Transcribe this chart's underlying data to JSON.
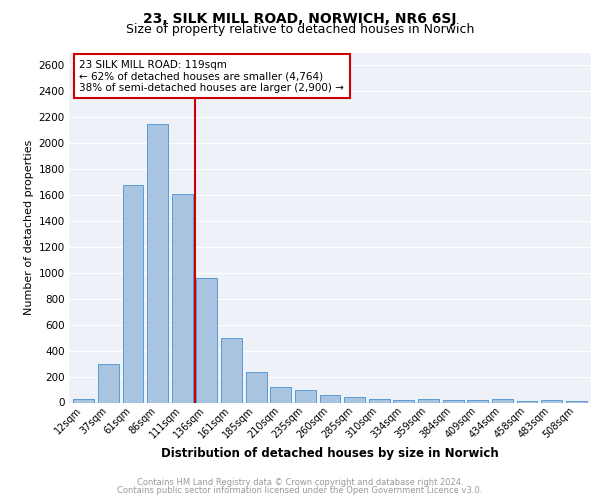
{
  "title1": "23, SILK MILL ROAD, NORWICH, NR6 6SJ",
  "title2": "Size of property relative to detached houses in Norwich",
  "xlabel": "Distribution of detached houses by size in Norwich",
  "ylabel": "Number of detached properties",
  "categories": [
    "12sqm",
    "37sqm",
    "61sqm",
    "86sqm",
    "111sqm",
    "136sqm",
    "161sqm",
    "185sqm",
    "210sqm",
    "235sqm",
    "260sqm",
    "285sqm",
    "310sqm",
    "334sqm",
    "359sqm",
    "384sqm",
    "409sqm",
    "434sqm",
    "458sqm",
    "483sqm",
    "508sqm"
  ],
  "values": [
    30,
    300,
    1680,
    2150,
    1610,
    960,
    500,
    235,
    120,
    100,
    55,
    40,
    25,
    20,
    25,
    20,
    20,
    25,
    10,
    20,
    15
  ],
  "bar_color": "#a8c4e0",
  "bar_edge_color": "#5b9bd5",
  "annotation_text_line1": "23 SILK MILL ROAD: 119sqm",
  "annotation_text_line2": "← 62% of detached houses are smaller (4,764)",
  "annotation_text_line3": "38% of semi-detached houses are larger (2,900) →",
  "vline_color": "#cc0000",
  "ylim": [
    0,
    2700
  ],
  "yticks": [
    0,
    200,
    400,
    600,
    800,
    1000,
    1200,
    1400,
    1600,
    1800,
    2000,
    2200,
    2400,
    2600
  ],
  "footnote1": "Contains HM Land Registry data © Crown copyright and database right 2024.",
  "footnote2": "Contains public sector information licensed under the Open Government Licence v3.0.",
  "bg_color": "#eef2f8",
  "title1_fontsize": 10,
  "title2_fontsize": 9,
  "annotation_box_color": "#cc0000",
  "grid_color": "#ffffff"
}
